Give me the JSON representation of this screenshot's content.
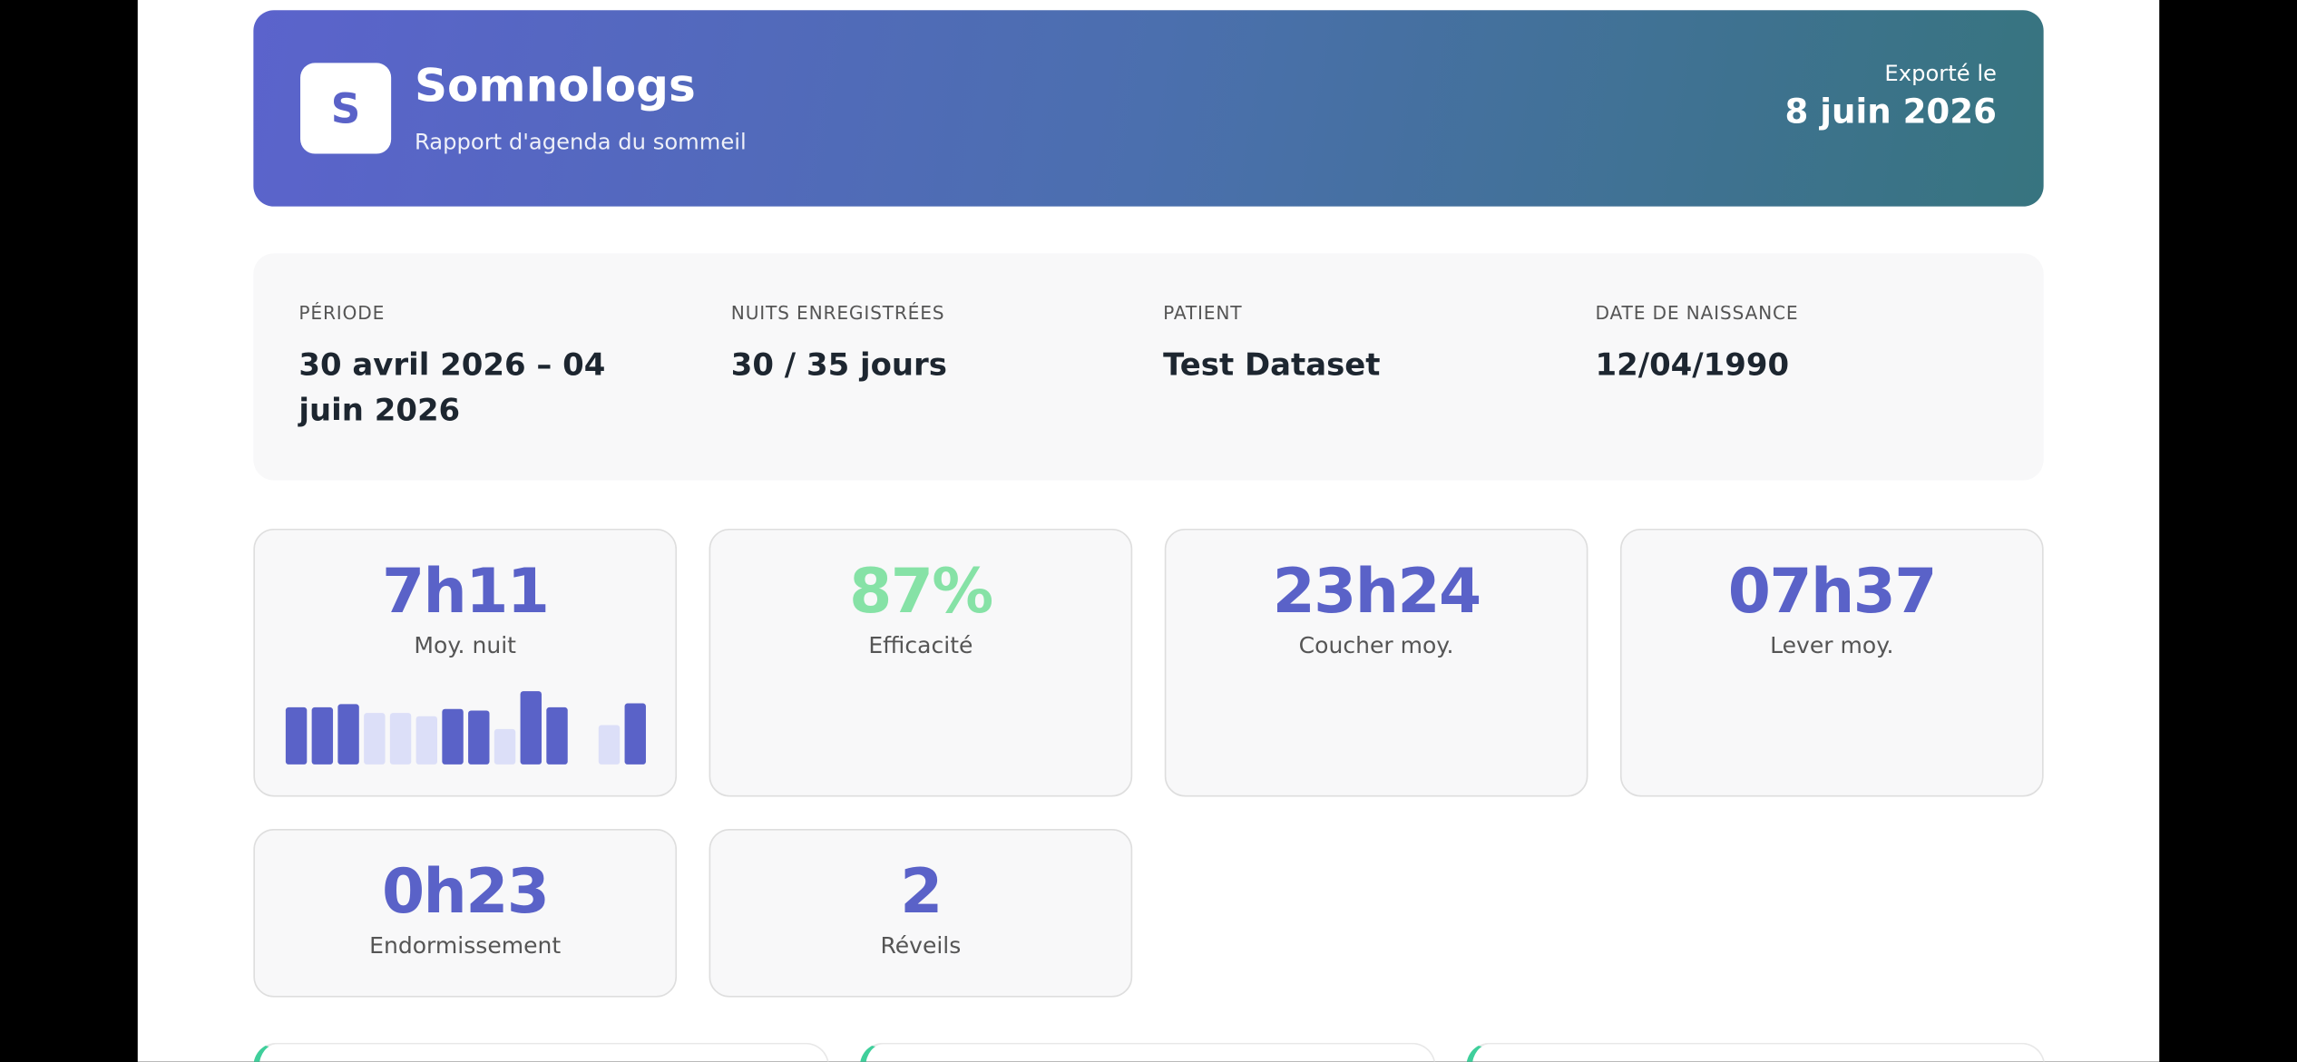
{
  "header": {
    "logo": "S",
    "title": "Somnologs",
    "subtitle": "Rapport d'agenda du sommeil",
    "export_label": "Exporté le",
    "export_date": "8 juin 2026"
  },
  "info": [
    {
      "label": "PÉRIODE",
      "value": "30 avril 2026 – 04 juin 2026"
    },
    {
      "label": "NUITS ENREGISTRÉES",
      "value": "30 / 35 jours"
    },
    {
      "label": "PATIENT",
      "value": "Test Dataset"
    },
    {
      "label": "DATE DE NAISSANCE",
      "value": "12/04/1990"
    }
  ],
  "stats": [
    {
      "value": "7h11",
      "label": "Moy. nuit",
      "color": "#5a62c8"
    },
    {
      "value": "87%",
      "label": "Efficacité",
      "color": "#86e2a6"
    },
    {
      "value": "23h24",
      "label": "Coucher moy.",
      "color": "#5a62c8"
    },
    {
      "value": "07h37",
      "label": "Lever moy.",
      "color": "#5a62c8"
    },
    {
      "value": "0h23",
      "label": "Endormissement",
      "color": "#5a62c8"
    },
    {
      "value": "2",
      "label": "Réveils",
      "color": "#5a62c8"
    }
  ],
  "chart_data": {
    "type": "bar",
    "values": [
      7.1,
      7.1,
      7.5,
      6.4,
      6.4,
      6.0,
      6.9,
      6.7,
      4.4,
      9.1,
      7.1,
      null,
      4.9,
      7.6
    ],
    "colors": [
      "#5a62c8",
      "#5a62c8",
      "#5a62c8",
      "#dcdff8",
      "#dcdff8",
      "#dcdff8",
      "#5a62c8",
      "#5a62c8",
      "#dcdff8",
      "#5a62c8",
      "#5a62c8",
      null,
      "#dcdff8",
      "#5a62c8"
    ]
  }
}
